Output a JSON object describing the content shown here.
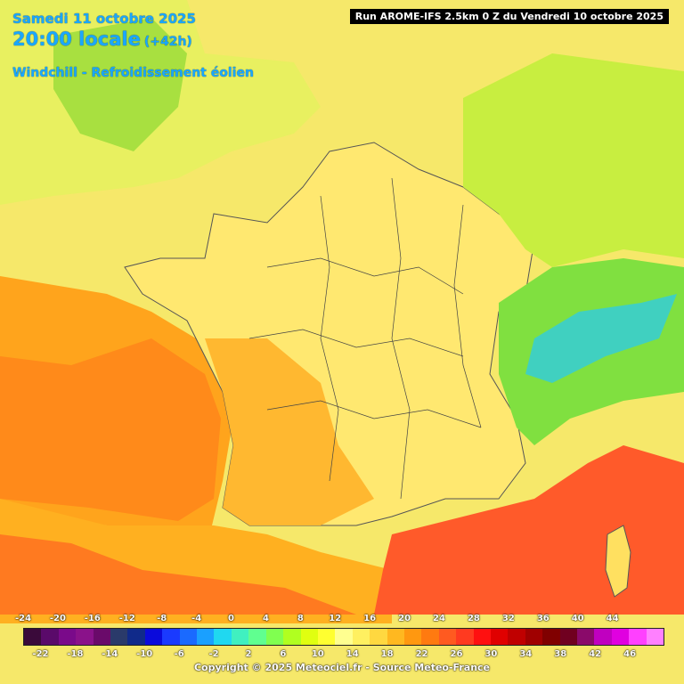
{
  "header": {
    "date": "Samedi 11 octobre 2025",
    "time": "20:00 locale",
    "step": "(+42h)",
    "subtitle": "Windchill - Refroidissement éolien",
    "run": "Run AROME-IFS 2.5km 0 Z du Vendredi 10 octobre 2025"
  },
  "legend": {
    "top_labels": [
      "-24",
      "-20",
      "-16",
      "-12",
      "-8",
      "-4",
      "0",
      "4",
      "8",
      "12",
      "16",
      "20",
      "24",
      "28",
      "32",
      "36",
      "40",
      "44"
    ],
    "bottom_labels": [
      "-22",
      "-18",
      "-14",
      "-10",
      "-6",
      "-2",
      "2",
      "6",
      "10",
      "14",
      "18",
      "22",
      "26",
      "30",
      "34",
      "38",
      "42",
      "46"
    ],
    "colors": [
      "#3a0a3a",
      "#5a0a6a",
      "#7a0a8a",
      "#8a128a",
      "#6a0a6a",
      "#2a3a6a",
      "#102a8a",
      "#0a0adc",
      "#1a3aff",
      "#1a6aff",
      "#1aa0ff",
      "#20d8f0",
      "#40f0c0",
      "#60ff90",
      "#80ff50",
      "#b0ff20",
      "#e0ff10",
      "#ffff30",
      "#ffff90",
      "#fff060",
      "#ffd840",
      "#ffb820",
      "#ff9810",
      "#ff7a10",
      "#ff5a20",
      "#ff3a20",
      "#ff1010",
      "#e00000",
      "#c00000",
      "#a00000",
      "#800000",
      "#700020",
      "#8a0a6a",
      "#c000c0",
      "#e000e0",
      "#ff40ff",
      "#ff80ff"
    ]
  },
  "footer": {
    "copyright": "Copyright © 2025 Meteociel.fr - Source Meteo-France"
  }
}
